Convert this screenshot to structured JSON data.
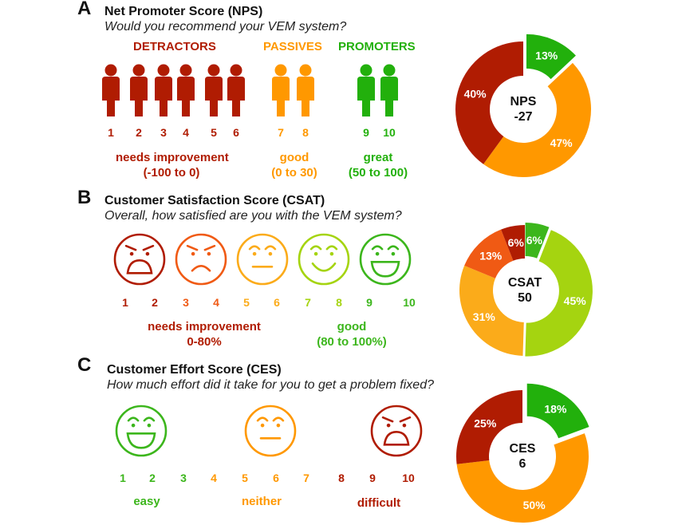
{
  "colors": {
    "dark_red": "#b01c02",
    "red_orange": "#f05a14",
    "orange": "#ff9800",
    "amber": "#fbab1a",
    "yellow_green": "#a5d410",
    "green": "#22b00c",
    "text": "#111111"
  },
  "panels": {
    "nps": {
      "letter": "A",
      "title": "Net Promoter Score (NPS)",
      "question": "Would you recommend your VEM system?",
      "categories": [
        {
          "label": "DETRACTORS",
          "color": "#b01c02"
        },
        {
          "label": "PASSIVES",
          "color": "#ff9800"
        },
        {
          "label": "PROMOTERS",
          "color": "#22b00c"
        }
      ],
      "scale": [
        {
          "n": "1",
          "color": "#b01c02"
        },
        {
          "n": "2",
          "color": "#b01c02"
        },
        {
          "n": "3",
          "color": "#b01c02"
        },
        {
          "n": "4",
          "color": "#b01c02"
        },
        {
          "n": "5",
          "color": "#b01c02"
        },
        {
          "n": "6",
          "color": "#b01c02"
        },
        {
          "n": "7",
          "color": "#ff9800"
        },
        {
          "n": "8",
          "color": "#ff9800"
        },
        {
          "n": "9",
          "color": "#22b00c"
        },
        {
          "n": "10",
          "color": "#22b00c"
        }
      ],
      "ranges": [
        {
          "label": "needs improvement",
          "range": "(-100 to 0)",
          "color": "#b01c02"
        },
        {
          "label": "good",
          "range": "(0 to 30)",
          "color": "#ff9800"
        },
        {
          "label": "great",
          "range": "(50 to 100)",
          "color": "#22b00c"
        }
      ],
      "center_label": "NPS",
      "center_value": "-27"
    },
    "csat": {
      "letter": "B",
      "title": "Customer Satisfaction Score (CSAT)",
      "question": "Overall, how satisfied are you with the VEM system?",
      "faces": [
        {
          "mood": "angry",
          "color": "#b01c02"
        },
        {
          "mood": "sad",
          "color": "#f05a14"
        },
        {
          "mood": "neutral",
          "color": "#fbab1a"
        },
        {
          "mood": "smile",
          "color": "#a5d410"
        },
        {
          "mood": "laugh",
          "color": "#3cb61c"
        }
      ],
      "scale": [
        {
          "n": "1",
          "color": "#b01c02"
        },
        {
          "n": "2",
          "color": "#b01c02"
        },
        {
          "n": "3",
          "color": "#f05a14"
        },
        {
          "n": "4",
          "color": "#f05a14"
        },
        {
          "n": "5",
          "color": "#fbab1a"
        },
        {
          "n": "6",
          "color": "#fbab1a"
        },
        {
          "n": "7",
          "color": "#a5d410"
        },
        {
          "n": "8",
          "color": "#a5d410"
        },
        {
          "n": "9",
          "color": "#3cb61c"
        },
        {
          "n": "10",
          "color": "#3cb61c"
        }
      ],
      "ranges": [
        {
          "label": "needs improvement",
          "range": "0-80%",
          "color": "#b01c02"
        },
        {
          "label": "good",
          "range": "(80 to 100%)",
          "color": "#3cb61c"
        }
      ],
      "center_label": "CSAT",
      "center_value": "50"
    },
    "ces": {
      "letter": "C",
      "title": "Customer Effort Score (CES)",
      "question": "How much effort did it take for you to get a problem fixed?",
      "faces": [
        {
          "mood": "laugh",
          "color": "#3cb61c"
        },
        {
          "mood": "neutral",
          "color": "#ff9800"
        },
        {
          "mood": "angry",
          "color": "#b01c02"
        }
      ],
      "scale": [
        {
          "n": "1",
          "color": "#3cb61c"
        },
        {
          "n": "2",
          "color": "#3cb61c"
        },
        {
          "n": "3",
          "color": "#3cb61c"
        },
        {
          "n": "4",
          "color": "#ff9800"
        },
        {
          "n": "5",
          "color": "#ff9800"
        },
        {
          "n": "6",
          "color": "#ff9800"
        },
        {
          "n": "7",
          "color": "#ff9800"
        },
        {
          "n": "8",
          "color": "#b01c02"
        },
        {
          "n": "9",
          "color": "#b01c02"
        },
        {
          "n": "10",
          "color": "#b01c02"
        }
      ],
      "ranges": [
        {
          "label": "easy",
          "range": "",
          "color": "#3cb61c"
        },
        {
          "label": "neither",
          "range": "",
          "color": "#ff9800"
        },
        {
          "label": "difficult",
          "range": "",
          "color": "#b01c02"
        }
      ],
      "center_label": "CES",
      "center_value": "6"
    }
  },
  "chart_data": [
    {
      "type": "pie",
      "title": "NPS",
      "center_text": "NPS -27",
      "categories": [
        "Promoters",
        "Passives",
        "Detractors"
      ],
      "values": [
        13,
        47,
        40
      ],
      "labels": [
        "13%",
        "47%",
        "40%"
      ],
      "colors": [
        "#22b00c",
        "#ff9800",
        "#b01c02"
      ],
      "exploded": [
        "Promoters"
      ],
      "donut": true
    },
    {
      "type": "pie",
      "title": "CSAT",
      "center_text": "CSAT 50",
      "categories": [
        "9-10",
        "7-8",
        "5-6",
        "3-4",
        "1-2"
      ],
      "values": [
        6,
        45,
        31,
        13,
        6
      ],
      "labels": [
        "6%",
        "45%",
        "31%",
        "13%",
        "6%"
      ],
      "colors": [
        "#3cb61c",
        "#a5d410",
        "#fbab1a",
        "#f05a14",
        "#b01c02"
      ],
      "exploded": [
        "9-10",
        "7-8"
      ],
      "donut": true
    },
    {
      "type": "pie",
      "title": "CES",
      "center_text": "CES 6",
      "categories": [
        "easy",
        "neither",
        "difficult"
      ],
      "values": [
        18,
        50,
        25
      ],
      "labels": [
        "18%",
        "50%",
        "25%"
      ],
      "colors": [
        "#22b00c",
        "#ff9800",
        "#b01c02"
      ],
      "exploded": [
        "easy"
      ],
      "donut": true
    }
  ]
}
